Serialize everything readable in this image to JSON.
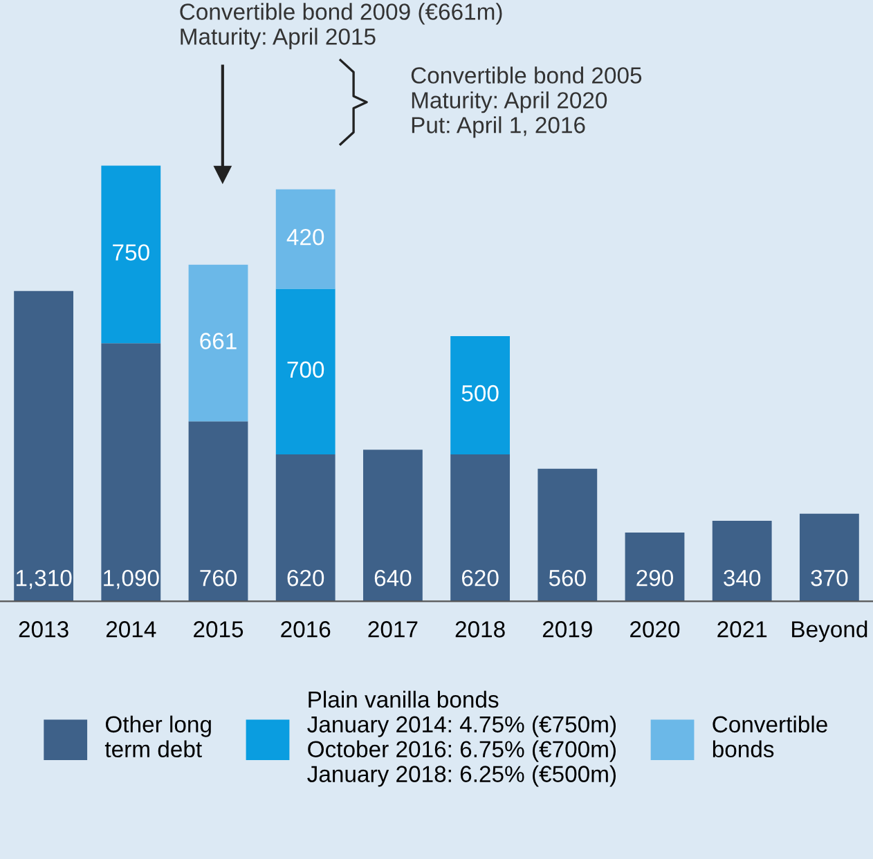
{
  "chart_data": {
    "type": "bar",
    "stacked": true,
    "grid": false,
    "legend": "bottom",
    "categories": [
      "2013",
      "2014",
      "2015",
      "2016",
      "2017",
      "2018",
      "2019",
      "2020",
      "2021",
      "Beyond"
    ],
    "series": [
      {
        "name": "Other long\nterm debt",
        "color": "#3e6189",
        "values": [
          1310,
          1090,
          760,
          620,
          640,
          620,
          560,
          290,
          340,
          370
        ],
        "value_labels": [
          "1,310",
          "1,090",
          "760",
          "620",
          "640",
          "620",
          "560",
          "290",
          "340",
          "370"
        ]
      },
      {
        "name": "Plain vanilla bonds\nJanuary 2014: 4.75% (€750m)\nOctober 2016: 6.75% (€700m)\nJanuary 2018: 6.25% (€500m)",
        "color": "#0a9de0",
        "values": [
          null,
          750,
          null,
          700,
          null,
          500,
          null,
          null,
          null,
          null
        ],
        "value_labels": [
          null,
          "750",
          null,
          "700",
          null,
          "500",
          null,
          null,
          null,
          null
        ]
      },
      {
        "name": "Convertible\nbonds",
        "color": "#6bb8e8",
        "values": [
          null,
          null,
          661,
          420,
          null,
          null,
          null,
          null,
          null,
          null
        ],
        "value_labels": [
          null,
          null,
          "661",
          "420",
          null,
          null,
          null,
          null,
          null,
          null
        ]
      }
    ],
    "annotations": [
      "Convertible bond 2009 (€661m)\nMaturity: April 2015",
      "Convertible bond 2005\nMaturity: April 2020\nPut: April 1, 2016"
    ]
  }
}
